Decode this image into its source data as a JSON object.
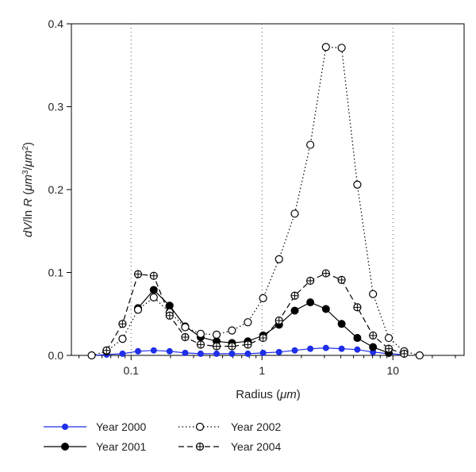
{
  "chart_data": {
    "type": "line",
    "xscale": "log",
    "xlim": [
      0.035,
      35
    ],
    "ylim": [
      0,
      0.4
    ],
    "xticks": [
      {
        "value": 0.1,
        "label": "0.1"
      },
      {
        "value": 1,
        "label": "1"
      },
      {
        "value": 10,
        "label": "10"
      }
    ],
    "yticks": [
      {
        "value": 0.0,
        "label": "0.0"
      },
      {
        "value": 0.1,
        "label": "0.1"
      },
      {
        "value": 0.2,
        "label": "0.2"
      },
      {
        "value": 0.3,
        "label": "0.3"
      },
      {
        "value": 0.4,
        "label": "0.4"
      }
    ],
    "xlabel": {
      "pre": "Radius (",
      "unit": "μm",
      "post": ")"
    },
    "ylabel": {
      "d": "d",
      "v": "V",
      "slash": "/ln ",
      "r": "R",
      "paren_open": " (",
      "unit1": "μm",
      "exp1": "3",
      "sep": "/",
      "unit2": "μm",
      "exp2": "2",
      "paren_close": ")"
    },
    "grid": "vertical dotted at decades",
    "legend_position": "bottom",
    "series": [
      {
        "name": "Year 2000",
        "color": "#1f2ee8",
        "line_style": "solid",
        "marker": "filled-circle",
        "x": [
          0.05,
          0.065,
          0.086,
          0.113,
          0.149,
          0.197,
          0.259,
          0.34,
          0.45,
          0.59,
          0.78,
          1.02,
          1.35,
          1.78,
          2.34,
          3.08,
          4.06,
          5.35,
          7.05,
          9.3,
          12.2
        ],
        "y": [
          0.0,
          0.001,
          0.002,
          0.005,
          0.006,
          0.005,
          0.003,
          0.002,
          0.002,
          0.002,
          0.002,
          0.003,
          0.004,
          0.006,
          0.008,
          0.009,
          0.008,
          0.007,
          0.004,
          0.002,
          0.001
        ]
      },
      {
        "name": "Year 2001",
        "color": "#000000",
        "line_style": "solid",
        "marker": "filled-circle",
        "x": [
          0.113,
          0.149,
          0.197,
          0.259,
          0.34,
          0.45,
          0.59,
          0.78,
          1.02,
          1.35,
          1.78,
          2.34,
          3.08,
          4.06,
          5.35,
          7.05,
          9.3
        ],
        "y": [
          0.057,
          0.079,
          0.06,
          0.035,
          0.022,
          0.017,
          0.015,
          0.017,
          0.024,
          0.037,
          0.054,
          0.064,
          0.056,
          0.038,
          0.021,
          0.01,
          0.003
        ]
      },
      {
        "name": "Year 2002",
        "color": "#000000",
        "line_style": "dotted",
        "marker": "open-circle",
        "x": [
          0.05,
          0.065,
          0.086,
          0.113,
          0.149,
          0.197,
          0.259,
          0.34,
          0.45,
          0.59,
          0.78,
          1.02,
          1.35,
          1.78,
          2.34,
          3.08,
          4.06,
          5.35,
          7.05,
          9.3,
          12.2,
          16.0
        ],
        "y": [
          0.0,
          0.005,
          0.02,
          0.055,
          0.07,
          0.052,
          0.034,
          0.026,
          0.025,
          0.03,
          0.04,
          0.069,
          0.116,
          0.171,
          0.254,
          0.372,
          0.371,
          0.206,
          0.074,
          0.021,
          0.005,
          0.0
        ]
      },
      {
        "name": "Year 2004",
        "color": "#000000",
        "line_style": "dashed",
        "marker": "crossed-circle",
        "x": [
          0.065,
          0.086,
          0.113,
          0.149,
          0.197,
          0.259,
          0.34,
          0.45,
          0.59,
          0.78,
          1.02,
          1.35,
          1.78,
          2.34,
          3.08,
          4.06,
          5.35,
          7.05,
          9.3,
          12.2
        ],
        "y": [
          0.006,
          0.038,
          0.098,
          0.096,
          0.048,
          0.022,
          0.013,
          0.011,
          0.011,
          0.013,
          0.021,
          0.042,
          0.072,
          0.09,
          0.099,
          0.091,
          0.058,
          0.024,
          0.008,
          0.002
        ]
      }
    ]
  }
}
